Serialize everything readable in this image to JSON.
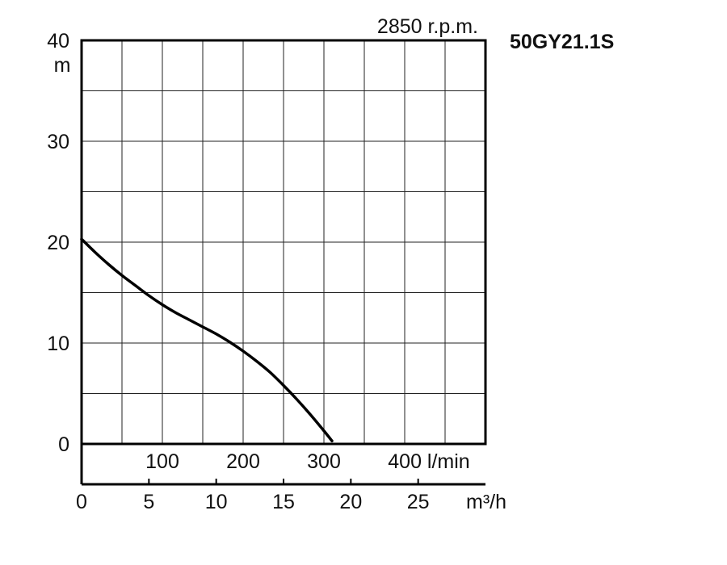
{
  "chart_data": {
    "type": "line",
    "title": "50GY21.1S",
    "subtitle": "2850 r.p.m.",
    "ylabel": "m",
    "ylim": [
      0,
      40
    ],
    "y_ticks": [
      0,
      10,
      20,
      30,
      40
    ],
    "grid": true,
    "x_lmin": {
      "range": [
        0,
        500
      ],
      "ticks": [
        100,
        200,
        300
      ],
      "end_label": "400 l/min"
    },
    "x_m3h": {
      "range": [
        0,
        30
      ],
      "ticks": [
        0,
        5,
        10,
        15,
        20,
        25
      ],
      "unit": "m³/h"
    },
    "series": [
      {
        "x_m3h": [
          0,
          1,
          2,
          3,
          4,
          5,
          6,
          7,
          8,
          9,
          10,
          11,
          12,
          13,
          14,
          15,
          16,
          17,
          18,
          18.6
        ],
        "y_m": [
          20.3,
          19.0,
          17.8,
          16.7,
          15.7,
          14.7,
          13.8,
          13.0,
          12.3,
          11.6,
          10.9,
          10.1,
          9.2,
          8.2,
          7.1,
          5.8,
          4.4,
          2.9,
          1.3,
          0.3
        ]
      }
    ]
  }
}
